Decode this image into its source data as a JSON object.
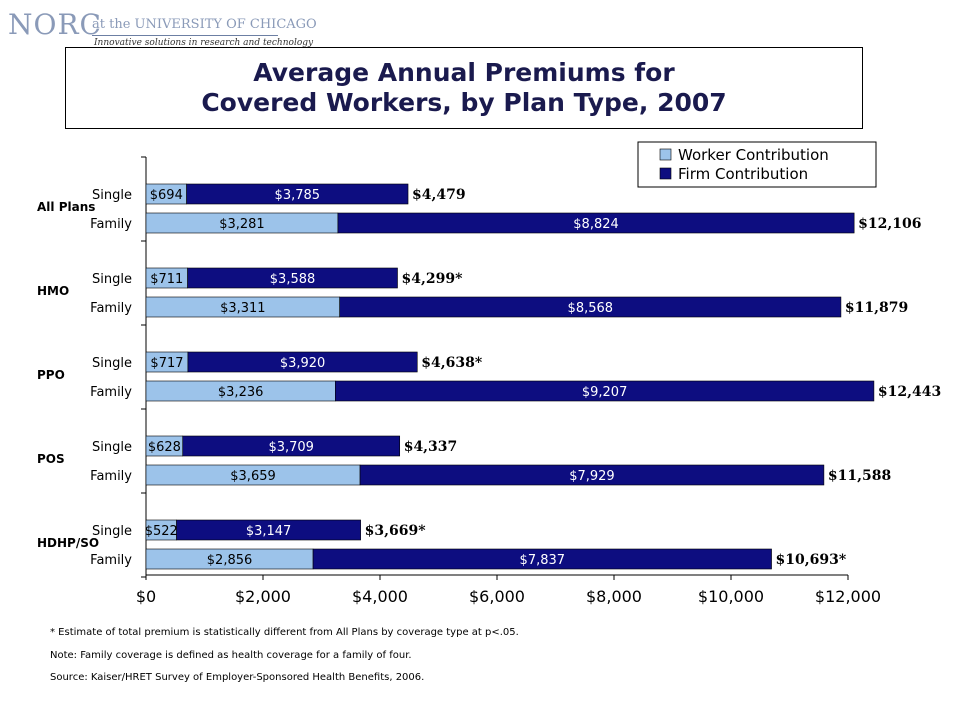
{
  "header": {
    "logo_text": "NORC",
    "logo_affiliation": "at the UNIVERSITY OF CHICAGO",
    "logo_tagline": "Innovative solutions in research and technology"
  },
  "title": {
    "line1": "Average Annual Premiums for",
    "line2": "Covered Workers, by Plan Type, 2007"
  },
  "chart_data": {
    "type": "bar",
    "orientation": "horizontal",
    "stacked": true,
    "groups": [
      {
        "label": "All Plans",
        "rows": [
          {
            "label": "Single",
            "worker": 694,
            "firm": 3785,
            "worker_label": "$694",
            "firm_label": "$3,785",
            "total_label": "$4,479"
          },
          {
            "label": "Family",
            "worker": 3281,
            "firm": 8824,
            "worker_label": "$3,281",
            "firm_label": "$8,824",
            "total_label": "$12,106"
          }
        ]
      },
      {
        "label": "HMO",
        "rows": [
          {
            "label": "Single",
            "worker": 711,
            "firm": 3588,
            "worker_label": "$711",
            "firm_label": "$3,588",
            "total_label": "$4,299*"
          },
          {
            "label": "Family",
            "worker": 3311,
            "firm": 8568,
            "worker_label": "$3,311",
            "firm_label": "$8,568",
            "total_label": "$11,879"
          }
        ]
      },
      {
        "label": "PPO",
        "rows": [
          {
            "label": "Single",
            "worker": 717,
            "firm": 3920,
            "worker_label": "$717",
            "firm_label": "$3,920",
            "total_label": "$4,638*"
          },
          {
            "label": "Family",
            "worker": 3236,
            "firm": 9207,
            "worker_label": "$3,236",
            "firm_label": "$9,207",
            "total_label": "$12,443"
          }
        ]
      },
      {
        "label": "POS",
        "rows": [
          {
            "label": "Single",
            "worker": 628,
            "firm": 3709,
            "worker_label": "$628",
            "firm_label": "$3,709",
            "total_label": "$4,337"
          },
          {
            "label": "Family",
            "worker": 3659,
            "firm": 7929,
            "worker_label": "$3,659",
            "firm_label": "$7,929",
            "total_label": "$11,588"
          }
        ]
      },
      {
        "label": "HDHP/SO",
        "rows": [
          {
            "label": "Single",
            "worker": 522,
            "firm": 3147,
            "worker_label": "$522",
            "firm_label": "$3,147",
            "total_label": "$3,669*"
          },
          {
            "label": "Family",
            "worker": 2856,
            "firm": 7837,
            "worker_label": "$2,856",
            "firm_label": "$7,837",
            "total_label": "$10,693*"
          }
        ]
      }
    ],
    "series": [
      {
        "name": "Worker Contribution",
        "color": "#9cc3ea"
      },
      {
        "name": "Firm Contribution",
        "color": "#0d0d80"
      }
    ],
    "xlim": [
      0,
      12000
    ],
    "xticks": [
      0,
      2000,
      4000,
      6000,
      8000,
      10000,
      12000
    ],
    "xtick_labels": [
      "$0",
      "$2,000",
      "$4,000",
      "$6,000",
      "$8,000",
      "$10,000",
      "$12,000"
    ],
    "legend_position": "top-right",
    "grid": false
  },
  "footnotes": {
    "asterisk": "* Estimate of total premium is statistically different from All Plans by coverage type at p<.05.",
    "note": "Note:  Family coverage is defined as health coverage for a family of four.",
    "source": "Source:  Kaiser/HRET Survey of Employer-Sponsored Health Benefits, 2006."
  }
}
